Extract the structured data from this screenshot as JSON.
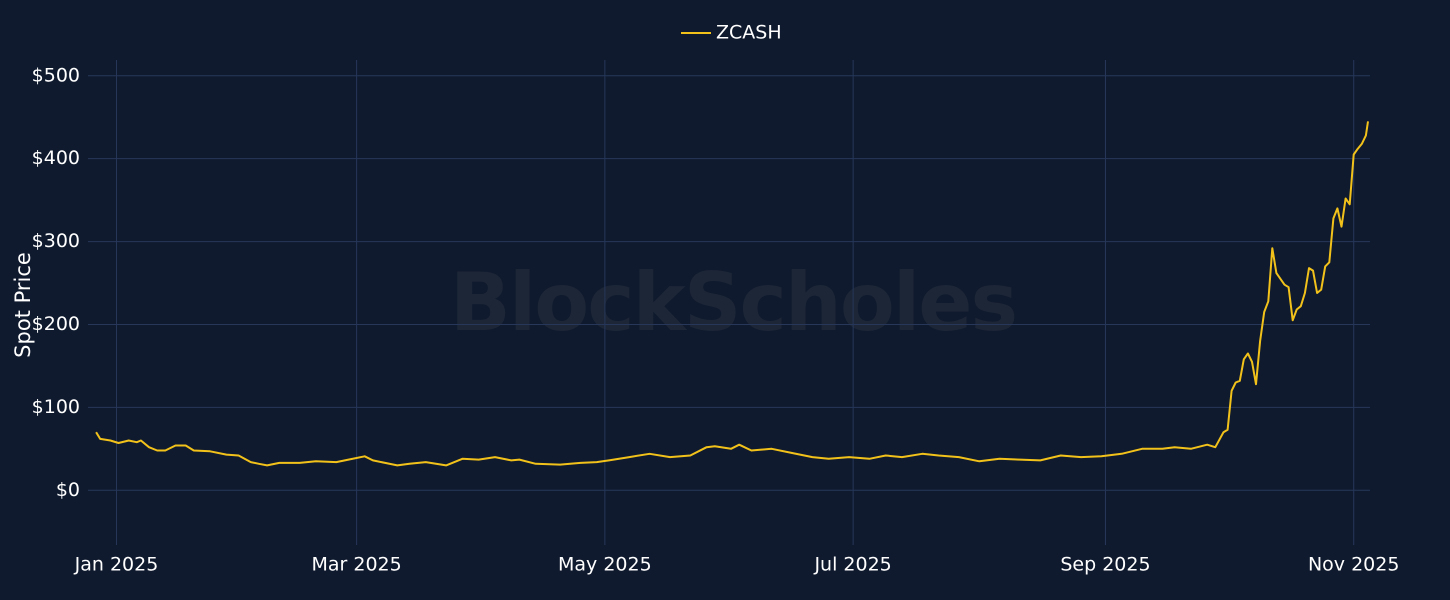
{
  "chart_data": {
    "type": "line",
    "watermark": "BlockScholes",
    "y_label": "Spot Price",
    "x": [
      -5,
      -4,
      -1.5,
      0.5,
      3,
      5,
      6,
      8,
      10,
      12,
      14.5,
      17,
      19,
      23,
      27,
      30,
      33,
      35,
      37,
      40,
      45,
      49,
      54,
      57,
      61,
      63,
      66,
      69,
      72,
      76,
      81,
      85,
      89,
      93,
      97,
      99,
      103,
      109,
      114,
      118,
      121,
      126,
      131,
      136,
      141,
      145,
      147,
      151,
      153,
      156,
      161,
      166,
      171,
      175,
      180,
      185,
      189,
      193,
      198,
      202,
      207,
      212,
      217,
      222,
      227,
      232,
      237,
      242,
      247,
      252,
      257,
      260,
      264,
      268,
      270,
      272,
      273,
      274,
      275,
      276,
      277,
      278,
      279,
      280,
      281,
      282,
      283,
      284,
      285,
      287,
      288,
      289,
      290,
      291,
      292,
      293,
      294,
      295,
      296,
      297,
      298,
      299,
      300,
      301,
      302,
      303,
      304,
      305,
      306,
      307,
      307.5
    ],
    "series": [
      {
        "name": "ZCASH",
        "color": "#f2c21b",
        "values": [
          70,
          62,
          60,
          57,
          60,
          58,
          60,
          52,
          48,
          48,
          54,
          54,
          48,
          47,
          43,
          42,
          34,
          32,
          30,
          33,
          33,
          35,
          34,
          37,
          41,
          36,
          33,
          30,
          32,
          34,
          30,
          38,
          37,
          40,
          36,
          37,
          32,
          31,
          33,
          34,
          36,
          40,
          44,
          40,
          42,
          52,
          53,
          50,
          55,
          48,
          50,
          45,
          40,
          38,
          40,
          38,
          42,
          40,
          44,
          42,
          40,
          35,
          38,
          37,
          36,
          42,
          40,
          41,
          44,
          50,
          50,
          52,
          50,
          55,
          52,
          70,
          73,
          120,
          130,
          132,
          158,
          165,
          155,
          128,
          180,
          215,
          228,
          292,
          262,
          248,
          245,
          205,
          218,
          222,
          238,
          268,
          265,
          238,
          242,
          270,
          275,
          328,
          340,
          318,
          352,
          345,
          405,
          412,
          418,
          428,
          445
        ]
      }
    ],
    "xlim": [
      -7,
      308
    ],
    "xticks": [
      {
        "value": 0,
        "label": "Jan 2025"
      },
      {
        "value": 59,
        "label": "Mar 2025"
      },
      {
        "value": 120,
        "label": "May 2025"
      },
      {
        "value": 181,
        "label": "Jul 2025"
      },
      {
        "value": 243,
        "label": "Sep 2025"
      },
      {
        "value": 304,
        "label": "Nov 2025"
      }
    ],
    "ylim": [
      -66,
      519
    ],
    "yticks": [
      {
        "value": 0,
        "label": "$0"
      },
      {
        "value": 100,
        "label": "$100"
      },
      {
        "value": 200,
        "label": "$200"
      },
      {
        "value": 300,
        "label": "$300"
      },
      {
        "value": 400,
        "label": "$400"
      },
      {
        "value": 500,
        "label": "$500"
      }
    ],
    "grid": true,
    "legend": "top"
  }
}
